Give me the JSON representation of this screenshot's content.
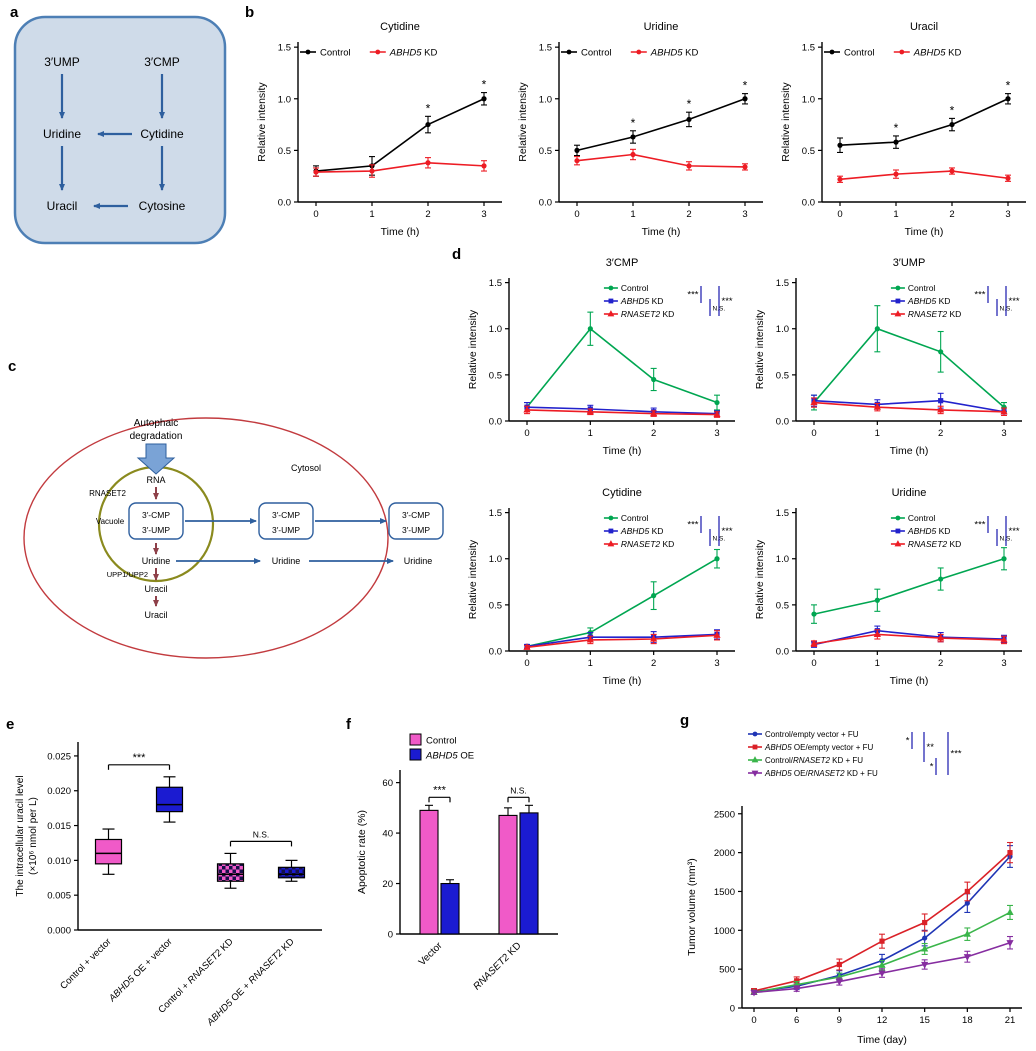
{
  "figure": {
    "panel_labels": {
      "a": "a",
      "b": "b",
      "c": "c",
      "d": "d",
      "e": "e",
      "f": "f",
      "g": "g"
    }
  },
  "panel_a": {
    "nodes": {
      "ump": "3′UMP",
      "cmp": "3′CMP",
      "uridine": "Uridine",
      "cytidine": "Cytidine",
      "uracil": "Uracil",
      "cytosine": "Cytosine"
    }
  },
  "panel_c": {
    "labels": {
      "autophagic1": "Autophaic",
      "autophagic2": "degradation",
      "rna": "RNA",
      "rnaset2": "RNASET2",
      "vacuole": "Vacuole",
      "cmp": "3′-CMP",
      "ump": "3′-UMP",
      "uridine": "Uridine",
      "upp": "UPP1/UPP2",
      "uracil": "Uracil",
      "cytosol": "Cytosol"
    }
  },
  "chart_data": [
    {
      "id": "b-cytidine",
      "type": "line",
      "title": "Cytidine",
      "xlabel": "Time (h)",
      "ylabel": "Relative intensity",
      "x": [
        0,
        1,
        2,
        3
      ],
      "ylim": [
        0,
        1.55
      ],
      "yticks": [
        0,
        0.5,
        1.0,
        1.5
      ],
      "ydec": 1,
      "series": [
        {
          "name": "Control",
          "color": "#000000",
          "marker": "circle",
          "values": [
            0.3,
            0.35,
            0.75,
            1.0
          ],
          "errors": [
            0.05,
            0.09,
            0.08,
            0.06
          ],
          "sig": [
            "",
            "",
            "*",
            "*"
          ]
        },
        {
          "name": "_ABHD5_ KD",
          "color": "#ed1c24",
          "marker": "circle",
          "values": [
            0.29,
            0.3,
            0.38,
            0.35
          ],
          "errors": [
            0.04,
            0.06,
            0.05,
            0.05
          ]
        }
      ]
    },
    {
      "id": "b-uridine",
      "type": "line",
      "title": "Uridine",
      "xlabel": "Time (h)",
      "ylabel": "Relative intensity",
      "x": [
        0,
        1,
        2,
        3
      ],
      "ylim": [
        0,
        1.55
      ],
      "yticks": [
        0,
        0.5,
        1.0,
        1.5
      ],
      "ydec": 1,
      "series": [
        {
          "name": "Control",
          "color": "#000000",
          "marker": "circle",
          "values": [
            0.5,
            0.63,
            0.8,
            1.0
          ],
          "errors": [
            0.05,
            0.06,
            0.07,
            0.05
          ],
          "sig": [
            "",
            "*",
            "*",
            "*"
          ]
        },
        {
          "name": "_ABHD5_ KD",
          "color": "#ed1c24",
          "marker": "circle",
          "values": [
            0.4,
            0.46,
            0.35,
            0.34
          ],
          "errors": [
            0.04,
            0.05,
            0.04,
            0.03
          ]
        }
      ]
    },
    {
      "id": "b-uracil",
      "type": "line",
      "title": "Uracil",
      "xlabel": "Time (h)",
      "ylabel": "Relative intensity",
      "x": [
        0,
        1,
        2,
        3
      ],
      "ylim": [
        0,
        1.55
      ],
      "yticks": [
        0,
        0.5,
        1.0,
        1.5
      ],
      "ydec": 1,
      "series": [
        {
          "name": "Control",
          "color": "#000000",
          "marker": "circle",
          "values": [
            0.55,
            0.58,
            0.75,
            1.0
          ],
          "errors": [
            0.07,
            0.06,
            0.06,
            0.05
          ],
          "sig": [
            "",
            "*",
            "*",
            "*"
          ]
        },
        {
          "name": "_ABHD5_ KD",
          "color": "#ed1c24",
          "marker": "circle",
          "values": [
            0.22,
            0.27,
            0.3,
            0.23
          ],
          "errors": [
            0.03,
            0.04,
            0.03,
            0.03
          ]
        }
      ]
    },
    {
      "id": "d-3cmp",
      "type": "line",
      "title": "3′CMP",
      "xlabel": "Time (h)",
      "ylabel": "Relative intensity",
      "x": [
        0,
        1,
        2,
        3
      ],
      "ylim": [
        0,
        1.55
      ],
      "yticks": [
        0,
        0.5,
        1.0,
        1.5
      ],
      "ydec": 1,
      "series": [
        {
          "name": "Control",
          "color": "#00a651",
          "marker": "circle",
          "values": [
            0.15,
            1.0,
            0.45,
            0.2
          ],
          "errors": [
            0.05,
            0.18,
            0.12,
            0.08
          ]
        },
        {
          "name": "_ABHD5_ KD",
          "color": "#2222cc",
          "marker": "square",
          "values": [
            0.15,
            0.13,
            0.1,
            0.08
          ],
          "errors": [
            0.05,
            0.04,
            0.04,
            0.03
          ]
        },
        {
          "name": "_RNASET2_ KD",
          "color": "#ed1c24",
          "marker": "tri",
          "values": [
            0.12,
            0.1,
            0.08,
            0.07
          ],
          "errors": [
            0.04,
            0.03,
            0.03,
            0.03
          ]
        }
      ],
      "brackets": [
        {
          "a": 0,
          "b": 1,
          "label": "***"
        },
        {
          "a": 1,
          "b": 2,
          "label": "N.S."
        },
        {
          "a": 0,
          "b": 2,
          "label": "***"
        }
      ]
    },
    {
      "id": "d-3ump",
      "type": "line",
      "title": "3′UMP",
      "xlabel": "Time (h)",
      "ylabel": "Relative intensity",
      "x": [
        0,
        1,
        2,
        3
      ],
      "ylim": [
        0,
        1.55
      ],
      "yticks": [
        0,
        0.5,
        1.0,
        1.5
      ],
      "ydec": 1,
      "series": [
        {
          "name": "Control",
          "color": "#00a651",
          "marker": "circle",
          "values": [
            0.2,
            1.0,
            0.75,
            0.15
          ],
          "errors": [
            0.08,
            0.25,
            0.22,
            0.05
          ]
        },
        {
          "name": "_ABHD5_ KD",
          "color": "#2222cc",
          "marker": "square",
          "values": [
            0.22,
            0.18,
            0.22,
            0.1
          ],
          "errors": [
            0.06,
            0.05,
            0.08,
            0.04
          ]
        },
        {
          "name": "_RNASET2_ KD",
          "color": "#ed1c24",
          "marker": "tri",
          "values": [
            0.2,
            0.15,
            0.12,
            0.1
          ],
          "errors": [
            0.05,
            0.04,
            0.04,
            0.04
          ]
        }
      ],
      "brackets": [
        {
          "a": 0,
          "b": 1,
          "label": "***"
        },
        {
          "a": 1,
          "b": 2,
          "label": "N.S."
        },
        {
          "a": 0,
          "b": 2,
          "label": "***"
        }
      ]
    },
    {
      "id": "d-cytidine",
      "type": "line",
      "title": "Cytidine",
      "xlabel": "Time (h)",
      "ylabel": "Relative intensity",
      "x": [
        0,
        1,
        2,
        3
      ],
      "ylim": [
        0,
        1.55
      ],
      "yticks": [
        0,
        0.5,
        1.0,
        1.5
      ],
      "ydec": 1,
      "series": [
        {
          "name": "Control",
          "color": "#00a651",
          "marker": "circle",
          "values": [
            0.05,
            0.2,
            0.6,
            1.0
          ],
          "errors": [
            0.02,
            0.05,
            0.15,
            0.1
          ]
        },
        {
          "name": "_ABHD5_ KD",
          "color": "#2222cc",
          "marker": "square",
          "values": [
            0.05,
            0.15,
            0.15,
            0.18
          ],
          "errors": [
            0.02,
            0.05,
            0.06,
            0.05
          ]
        },
        {
          "name": "_RNASET2_ KD",
          "color": "#ed1c24",
          "marker": "tri",
          "values": [
            0.04,
            0.12,
            0.13,
            0.17
          ],
          "errors": [
            0.02,
            0.04,
            0.05,
            0.05
          ]
        }
      ],
      "brackets": [
        {
          "a": 0,
          "b": 1,
          "label": "***"
        },
        {
          "a": 1,
          "b": 2,
          "label": "N.S."
        },
        {
          "a": 0,
          "b": 2,
          "label": "***"
        }
      ]
    },
    {
      "id": "d-uridine",
      "type": "line",
      "title": "Uridine",
      "xlabel": "Time (h)",
      "ylabel": "Relative intensity",
      "x": [
        0,
        1,
        2,
        3
      ],
      "ylim": [
        0,
        1.55
      ],
      "yticks": [
        0,
        0.5,
        1.0,
        1.5
      ],
      "ydec": 1,
      "series": [
        {
          "name": "Control",
          "color": "#00a651",
          "marker": "circle",
          "values": [
            0.4,
            0.55,
            0.78,
            1.0
          ],
          "errors": [
            0.1,
            0.12,
            0.12,
            0.12
          ]
        },
        {
          "name": "_ABHD5_ KD",
          "color": "#2222cc",
          "marker": "square",
          "values": [
            0.07,
            0.22,
            0.15,
            0.13
          ],
          "errors": [
            0.03,
            0.05,
            0.05,
            0.04
          ]
        },
        {
          "name": "_RNASET2_ KD",
          "color": "#ed1c24",
          "marker": "tri",
          "values": [
            0.08,
            0.18,
            0.14,
            0.12
          ],
          "errors": [
            0.03,
            0.05,
            0.04,
            0.04
          ]
        }
      ],
      "brackets": [
        {
          "a": 0,
          "b": 1,
          "label": "***"
        },
        {
          "a": 1,
          "b": 2,
          "label": "N.S."
        },
        {
          "a": 0,
          "b": 2,
          "label": "***"
        }
      ]
    },
    {
      "id": "e-uracil-level",
      "type": "box",
      "ylabel": [
        "The intracellular uracil level",
        "(×10⁶ nmol per L)"
      ],
      "ylim": [
        0,
        0.027
      ],
      "yticks": [
        0,
        0.005,
        0.01,
        0.015,
        0.02,
        0.025
      ],
      "ydec": 3,
      "categories": [
        "Control + vector",
        "_ABHD5_ OE + vector",
        "Control + _RNASET2_ KD",
        "_ABHD5_ OE + _RNASET2_ KD"
      ],
      "boxes": [
        {
          "lo": 0.008,
          "q1": 0.0095,
          "med": 0.011,
          "q3": 0.013,
          "hi": 0.0145,
          "fill": "#f05ac8",
          "pattern": false
        },
        {
          "lo": 0.0155,
          "q1": 0.017,
          "med": 0.018,
          "q3": 0.0205,
          "hi": 0.022,
          "fill": "#1b1bd1",
          "pattern": false
        },
        {
          "lo": 0.006,
          "q1": 0.007,
          "med": 0.008,
          "q3": 0.0095,
          "hi": 0.011,
          "fill": "#f05ac8",
          "pattern": true
        },
        {
          "lo": 0.007,
          "q1": 0.0075,
          "med": 0.008,
          "q3": 0.009,
          "hi": 0.01,
          "fill": "#1b1bd1",
          "pattern": true
        }
      ],
      "brackets": [
        {
          "a": 0,
          "b": 1,
          "label": "***"
        },
        {
          "a": 2,
          "b": 3,
          "label": "N.S."
        }
      ]
    },
    {
      "id": "f-apoptosis",
      "type": "bar",
      "ylabel": "Apoptotic rate (%)",
      "ylim": [
        0,
        65
      ],
      "yticks": [
        0,
        20,
        40,
        60
      ],
      "ydec": 0,
      "groups": [
        "Vector",
        "_RNASET2_ KD"
      ],
      "series": [
        {
          "name": "Control",
          "color": "#f05ac8",
          "values": [
            49,
            47
          ],
          "errors": [
            2,
            3
          ]
        },
        {
          "name": "_ABHD5_ OE",
          "color": "#1b1bd1",
          "values": [
            20,
            48
          ],
          "errors": [
            1.5,
            3
          ]
        }
      ],
      "group_sig": [
        "***",
        "N.S."
      ]
    },
    {
      "id": "g-tumor-volume",
      "type": "line",
      "xlabel": "Time (day)",
      "ylabel": "Tumor volume (mm³)",
      "x": [
        0,
        6,
        9,
        12,
        15,
        18,
        21
      ],
      "ylim": [
        0,
        2600
      ],
      "yticks": [
        0,
        500,
        1000,
        1500,
        2000,
        2500
      ],
      "ydec": 0,
      "series": [
        {
          "name": "Control/empty vector + FU",
          "color": "#1f35b5",
          "marker": "circle",
          "values": [
            210,
            280,
            420,
            610,
            900,
            1350,
            1950
          ],
          "errors": [
            30,
            40,
            60,
            80,
            100,
            120,
            140
          ]
        },
        {
          "name": "_ABHD5_ OE/empty vector + FU",
          "color": "#da2128",
          "marker": "square",
          "values": [
            220,
            350,
            560,
            860,
            1100,
            1500,
            2000
          ],
          "errors": [
            30,
            50,
            70,
            90,
            110,
            120,
            130
          ]
        },
        {
          "name": "Control/_RNASET2_ KD + FU",
          "color": "#3ab54a",
          "marker": "tri",
          "values": [
            200,
            300,
            400,
            550,
            760,
            950,
            1230
          ],
          "errors": [
            25,
            40,
            50,
            60,
            70,
            80,
            90
          ]
        },
        {
          "name": "_ABHD5_ OE/_RNASET2_ KD + FU",
          "color": "#862da0",
          "marker": "tridown",
          "values": [
            200,
            250,
            340,
            450,
            560,
            660,
            840
          ],
          "errors": [
            25,
            35,
            45,
            55,
            60,
            70,
            80
          ]
        }
      ],
      "brackets": [
        {
          "a": 0,
          "b": 1,
          "label": "*"
        },
        {
          "a": 0,
          "b": 2,
          "label": "**"
        },
        {
          "a": 2,
          "b": 3,
          "label": "*"
        },
        {
          "a": 0,
          "b": 3,
          "label": "***"
        }
      ]
    }
  ]
}
